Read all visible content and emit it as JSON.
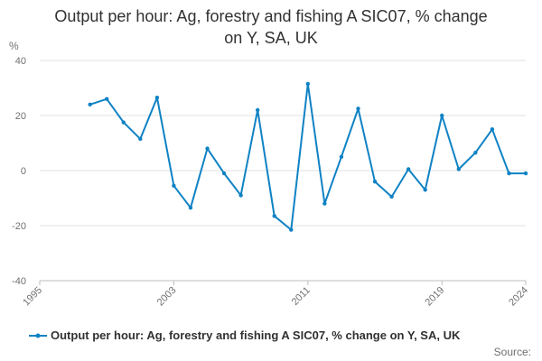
{
  "title": {
    "line1": "Output per hour: Ag, forestry and fishing A SIC07, % change",
    "line2": "on Y, SA, UK"
  },
  "legend": {
    "label": "Output per hour: Ag, forestry and fishing A SIC07, % change on Y, SA, UK"
  },
  "source_label": "Source:",
  "colors": {
    "series": "#0f82c4",
    "grid": "#e0e0e0",
    "axis_text": "#707071"
  },
  "chart_data": {
    "type": "line",
    "ylabel": "%",
    "xlabel": "",
    "xlim": [
      1995,
      2024
    ],
    "ylim": [
      -40,
      40
    ],
    "grid": true,
    "legend_position": "bottom",
    "x_ticks": [
      "1995",
      "2003",
      "2011",
      "2019",
      "2024"
    ],
    "y_ticks": [
      "40",
      "20",
      "0",
      "-20",
      "-40"
    ],
    "series": [
      {
        "name": "Output per hour: Ag, forestry and fishing A SIC07, % change on Y, SA, UK",
        "x": [
          1998,
          1999,
          2000,
          2001,
          2002,
          2003,
          2004,
          2005,
          2006,
          2007,
          2008,
          2009,
          2010,
          2011,
          2012,
          2013,
          2014,
          2015,
          2016,
          2017,
          2018,
          2019,
          2020,
          2021,
          2022,
          2023,
          2024
        ],
        "values": [
          24,
          26,
          17.5,
          11.5,
          26.5,
          -5.5,
          -13.5,
          8,
          -1,
          -9,
          22,
          -16.5,
          -21.5,
          31.5,
          -12,
          5,
          22.5,
          -4,
          -9.5,
          0.5,
          -7,
          20,
          0.5,
          6.5,
          15,
          -1,
          -1
        ]
      }
    ]
  }
}
